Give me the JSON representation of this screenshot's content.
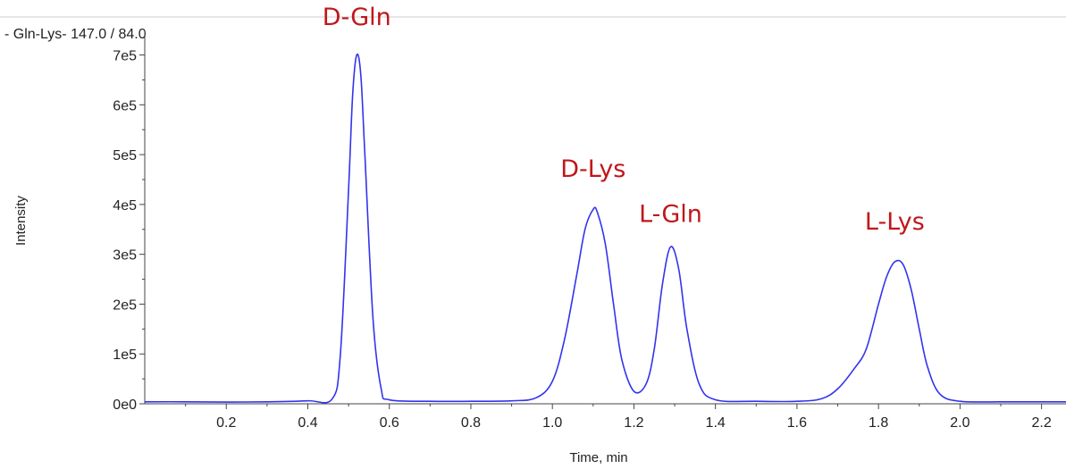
{
  "header": {
    "trace_title": "- Gln-Lys- 147.0 / 84.0"
  },
  "colors": {
    "trace": "#3333ee",
    "annotation": "#c0171c",
    "axis": "#444444",
    "top_rule": "#cfcfcf"
  },
  "chart_data": {
    "type": "line",
    "title": "",
    "xlabel": "Time, min",
    "ylabel": "Intensity",
    "xlim": [
      0.0,
      2.26
    ],
    "ylim": [
      0,
      735000
    ],
    "x_ticks": [
      0.2,
      0.4,
      0.6,
      0.8,
      1.0,
      1.2,
      1.4,
      1.6,
      1.8,
      2.0,
      2.2
    ],
    "x_tick_labels": [
      "0.2",
      "0.4",
      "0.6",
      "0.8",
      "1.0",
      "1.2",
      "1.4",
      "1.6",
      "1.8",
      "2.0",
      "2.2"
    ],
    "y_ticks": [
      0,
      100000,
      200000,
      300000,
      400000,
      500000,
      600000,
      700000
    ],
    "y_tick_labels": [
      "0e0",
      "1e5",
      "2e5",
      "3e5",
      "4e5",
      "5e5",
      "6e5",
      "7e5"
    ],
    "grid": false,
    "legend": "none",
    "series": [
      {
        "x": [
          0.0,
          0.1,
          0.2,
          0.3,
          0.4,
          0.46,
          0.48,
          0.5,
          0.51,
          0.52,
          0.53,
          0.54,
          0.56,
          0.58,
          0.6,
          0.7,
          0.8,
          0.9,
          0.96,
          1.0,
          1.03,
          1.06,
          1.08,
          1.1,
          1.11,
          1.13,
          1.15,
          1.17,
          1.2,
          1.23,
          1.25,
          1.27,
          1.29,
          1.31,
          1.33,
          1.36,
          1.4,
          1.5,
          1.6,
          1.66,
          1.7,
          1.74,
          1.77,
          1.8,
          1.82,
          1.84,
          1.86,
          1.88,
          1.9,
          1.92,
          1.95,
          2.0,
          2.1,
          2.2,
          2.26
        ],
        "y": [
          4000,
          4000,
          3500,
          4000,
          6000,
          10000,
          100000,
          430000,
          620000,
          700000,
          660000,
          500000,
          170000,
          30000,
          8000,
          5000,
          5000,
          6000,
          12000,
          45000,
          130000,
          260000,
          350000,
          390000,
          385000,
          320000,
          200000,
          90000,
          25000,
          40000,
          110000,
          240000,
          315000,
          270000,
          150000,
          40000,
          8000,
          5000,
          5000,
          10000,
          30000,
          70000,
          110000,
          200000,
          255000,
          285000,
          280000,
          230000,
          150000,
          75000,
          20000,
          5000,
          4000,
          4000,
          4000
        ]
      }
    ],
    "annotations": [
      {
        "text": "D-Gln",
        "x": 0.52,
        "y": 760000
      },
      {
        "text": "D-Lys",
        "x": 1.1,
        "y": 455000
      },
      {
        "text": "L-Gln",
        "x": 1.29,
        "y": 365000
      },
      {
        "text": "L-Lys",
        "x": 1.84,
        "y": 350000
      }
    ]
  }
}
